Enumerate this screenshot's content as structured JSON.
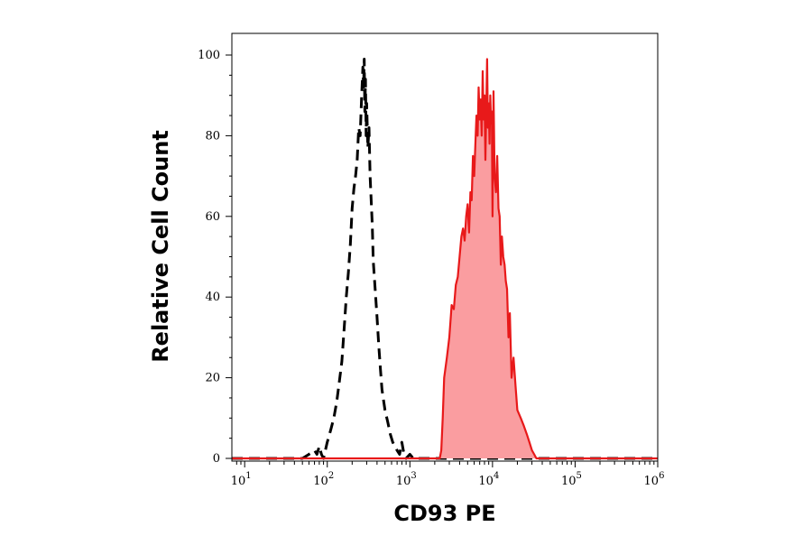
{
  "chart_data": {
    "type": "area",
    "xlabel": "CD93 PE",
    "ylabel": "Relative Cell Count",
    "x_scale": "log",
    "xlim": [
      7,
      1000000
    ],
    "ylim": [
      0,
      103
    ],
    "x_ticks": [
      {
        "value": 10,
        "base": "10",
        "exp": "1"
      },
      {
        "value": 100,
        "base": "10",
        "exp": "2"
      },
      {
        "value": 1000,
        "base": "10",
        "exp": "3"
      },
      {
        "value": 10000,
        "base": "10",
        "exp": "4"
      },
      {
        "value": 100000,
        "base": "10",
        "exp": "5"
      },
      {
        "value": 1000000,
        "base": "10",
        "exp": "6"
      }
    ],
    "y_ticks": [
      "0",
      "20",
      "40",
      "60",
      "80",
      "100"
    ],
    "grid": false,
    "series": [
      {
        "style": "dashed",
        "color": "#000000",
        "fill": "none",
        "x": [
          7,
          50,
          60,
          70,
          75,
          80,
          85,
          90,
          100,
          110,
          120,
          130,
          140,
          150,
          160,
          170,
          180,
          190,
          200,
          210,
          220,
          230,
          240,
          250,
          260,
          270,
          275,
          280,
          285,
          290,
          295,
          300,
          310,
          320,
          330,
          340,
          350,
          360,
          380,
          400,
          420,
          440,
          460,
          500,
          540,
          580,
          620,
          660,
          700,
          750,
          800,
          850,
          900,
          1000,
          1100,
          1000000
        ],
        "y": [
          0,
          0,
          1,
          2,
          1,
          3,
          1,
          0,
          4,
          7,
          10,
          14,
          19,
          24,
          32,
          40,
          46,
          53,
          62,
          67,
          70,
          74,
          82,
          80,
          89,
          97,
          92,
          99,
          86,
          94,
          80,
          88,
          77,
          82,
          70,
          64,
          58,
          49,
          42,
          35,
          28,
          22,
          17,
          12,
          9,
          6,
          4,
          3,
          2,
          1,
          4,
          1,
          0,
          1,
          0,
          0
        ]
      },
      {
        "style": "solid",
        "color": "#e8191a",
        "fill": "#fa9da0",
        "x": [
          7,
          2300,
          2400,
          2500,
          2600,
          2800,
          3000,
          3200,
          3400,
          3600,
          3800,
          4000,
          4200,
          4400,
          4600,
          4800,
          5000,
          5200,
          5400,
          5600,
          5800,
          6000,
          6200,
          6400,
          6600,
          6800,
          7000,
          7200,
          7400,
          7600,
          7800,
          8000,
          8200,
          8400,
          8600,
          8800,
          9000,
          9200,
          9400,
          9600,
          9800,
          10000,
          10300,
          10600,
          11000,
          11400,
          11800,
          12200,
          12600,
          13000,
          13500,
          14000,
          14500,
          15000,
          15600,
          16200,
          17000,
          18000,
          19000,
          20000,
          22000,
          24000,
          26000,
          28000,
          30000,
          32000,
          34000,
          36000,
          1000000
        ],
        "y": [
          0,
          0,
          2,
          10,
          20,
          25,
          30,
          38,
          37,
          43,
          45,
          50,
          55,
          57,
          54,
          60,
          63,
          56,
          66,
          64,
          75,
          70,
          78,
          85,
          80,
          92,
          84,
          89,
          80,
          96,
          84,
          90,
          74,
          86,
          99,
          82,
          88,
          78,
          90,
          83,
          86,
          60,
          91,
          70,
          66,
          75,
          62,
          60,
          48,
          55,
          50,
          48,
          44,
          42,
          30,
          36,
          20,
          25,
          18,
          12,
          10,
          8,
          6,
          4,
          2,
          1,
          0,
          0,
          0
        ]
      }
    ]
  }
}
